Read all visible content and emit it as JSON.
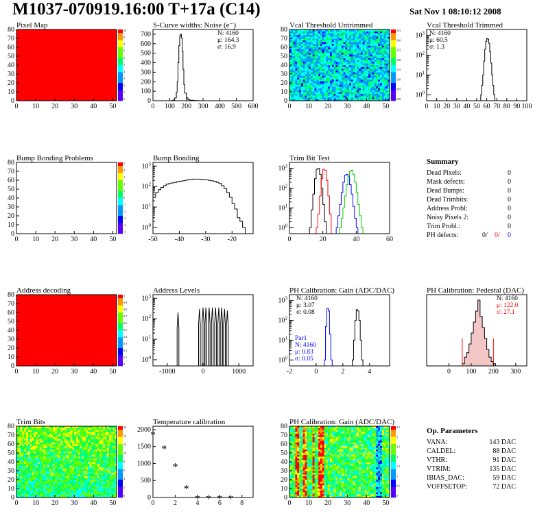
{
  "header": {
    "title": "M1037-070919.16:00 T+17a (C14)",
    "date": "Sat Nov  1 08:10:12 2008"
  },
  "chart_data": [
    {
      "id": "pixel-map",
      "type": "heatmap",
      "title": "Pixel Map",
      "xlim": [
        0,
        52
      ],
      "ylim": [
        0,
        80
      ],
      "xticks": [
        0,
        10,
        20,
        30,
        40,
        50
      ],
      "yticks": [
        0,
        10,
        20,
        30,
        40,
        50,
        60,
        70,
        80
      ],
      "fill": "uniform",
      "fill_color": "#ff0000",
      "colorbar_labels": [
        "10",
        "9",
        "8",
        "7",
        "6",
        "5",
        "4",
        "3",
        "2",
        "1",
        "0"
      ]
    },
    {
      "id": "noise",
      "type": "histogram",
      "title": "S-Curve widths: Noise (e⁻)",
      "xlim": [
        0,
        600
      ],
      "ylim": [
        0,
        750
      ],
      "xticks": [
        0,
        100,
        200,
        300,
        400,
        500,
        600
      ],
      "yticks": [
        0,
        100,
        200,
        300,
        400,
        500,
        600,
        700
      ],
      "logy": false,
      "series": [
        {
          "color": "#000000",
          "x": [
            100,
            110,
            120,
            130,
            140,
            145,
            150,
            155,
            160,
            165,
            170,
            175,
            180,
            185,
            190,
            200,
            210,
            220,
            240,
            260,
            280
          ],
          "y": [
            0,
            2,
            8,
            30,
            90,
            200,
            400,
            580,
            680,
            700,
            660,
            520,
            330,
            170,
            80,
            30,
            12,
            5,
            3,
            1,
            0
          ]
        }
      ],
      "stats": {
        "N": "4160",
        "mean": "164.3",
        "rms": "16.9"
      }
    },
    {
      "id": "vcal-untrimmed",
      "type": "heatmap",
      "title": "Vcal Threshold Untrimmed",
      "xlim": [
        0,
        52
      ],
      "ylim": [
        0,
        80
      ],
      "xticks": [
        0,
        10,
        20,
        30,
        40,
        50
      ],
      "yticks": [
        0,
        10,
        20,
        30,
        40,
        50,
        60,
        70,
        80
      ],
      "fill": "noise-cyan",
      "colorbar_labels": [
        "135",
        "130",
        "125",
        "120",
        "115",
        "110",
        "105",
        "100"
      ]
    },
    {
      "id": "vcal-trimmed",
      "type": "histogram",
      "title": "Vcal Threshold Trimmed",
      "xlim": [
        0,
        100
      ],
      "ylim": [
        0.5,
        2000
      ],
      "xticks": [
        0,
        10,
        20,
        30,
        40,
        50,
        60,
        70,
        80,
        90,
        100
      ],
      "logy": true,
      "series": [
        {
          "color": "#000000",
          "x": [
            54,
            55,
            56,
            57,
            58,
            59,
            60,
            61,
            62,
            63,
            64,
            65,
            66,
            67
          ],
          "y": [
            1,
            3,
            10,
            50,
            200,
            500,
            700,
            650,
            400,
            150,
            40,
            10,
            3,
            1
          ]
        }
      ],
      "stats": {
        "N": "4160",
        "mean": "60.5",
        "rms": "1.3"
      }
    },
    {
      "id": "bump-problems",
      "type": "heatmap",
      "title": "Bump Bonding Problems",
      "xlim": [
        0,
        52
      ],
      "ylim": [
        0,
        80
      ],
      "xticks": [
        0,
        10,
        20,
        30,
        40,
        50
      ],
      "yticks": [
        0,
        10,
        20,
        30,
        40,
        50,
        60,
        70,
        80
      ],
      "fill": "empty",
      "colorbar_labels": [
        "5",
        "4",
        "3",
        "2",
        "1",
        "0",
        "-1",
        "-2",
        "-3",
        "-4",
        "-5"
      ]
    },
    {
      "id": "bump-bonding",
      "type": "histogram",
      "title": "Bump Bonding",
      "xlim": [
        -50,
        -12
      ],
      "ylim": [
        0.5,
        1500
      ],
      "xticks": [
        -50,
        -40,
        -30,
        -20
      ],
      "logy": true,
      "series": [
        {
          "color": "#000000",
          "x": [
            -50,
            -49,
            -48,
            -47,
            -46,
            -45,
            -44,
            -43,
            -42,
            -41,
            -40,
            -39,
            -38,
            -37,
            -36,
            -35,
            -34,
            -33,
            -32,
            -31,
            -30,
            -29,
            -28,
            -27,
            -26,
            -25,
            -24,
            -23,
            -22,
            -21,
            -20,
            -19,
            -18,
            -17,
            -16,
            -15
          ],
          "y": [
            30,
            50,
            70,
            90,
            110,
            130,
            140,
            150,
            160,
            170,
            180,
            190,
            200,
            210,
            220,
            230,
            230,
            230,
            220,
            215,
            210,
            200,
            190,
            180,
            160,
            140,
            110,
            80,
            50,
            30,
            15,
            8,
            3,
            2,
            1,
            0
          ]
        }
      ]
    },
    {
      "id": "trim-bit-test",
      "type": "histogram",
      "title": "Trim Bit Test",
      "xlim": [
        0,
        60
      ],
      "ylim": [
        0.5,
        2000
      ],
      "xticks": [
        0,
        20,
        40,
        60
      ],
      "logy": true,
      "series": [
        {
          "color": "#000000",
          "x": [
            12,
            13,
            14,
            15,
            16,
            17,
            18,
            19,
            20,
            21,
            22
          ],
          "y": [
            1,
            8,
            50,
            300,
            900,
            1000,
            500,
            100,
            15,
            2,
            0
          ]
        },
        {
          "color": "#ff0000",
          "x": [
            16,
            17,
            18,
            19,
            20,
            21,
            22,
            23,
            24,
            25
          ],
          "y": [
            1,
            5,
            40,
            300,
            900,
            800,
            250,
            40,
            5,
            0
          ]
        },
        {
          "color": "#0000ff",
          "x": [
            28,
            29,
            30,
            31,
            32,
            33,
            34,
            35,
            36,
            37,
            38,
            39,
            40,
            41
          ],
          "y": [
            1,
            4,
            15,
            60,
            200,
            450,
            500,
            400,
            150,
            50,
            12,
            3,
            1,
            0
          ]
        },
        {
          "color": "#00cc00",
          "x": [
            30,
            31,
            32,
            33,
            34,
            35,
            36,
            37,
            38,
            39,
            40,
            41,
            42,
            43,
            44
          ],
          "y": [
            1,
            3,
            10,
            40,
            150,
            400,
            700,
            800,
            500,
            200,
            60,
            15,
            4,
            1,
            0
          ]
        }
      ]
    },
    {
      "id": "address-decoding",
      "type": "heatmap",
      "title": "Address decoding",
      "xlim": [
        0,
        52
      ],
      "ylim": [
        0,
        80
      ],
      "xticks": [
        0,
        10,
        20,
        30,
        40,
        50
      ],
      "yticks": [
        0,
        10,
        20,
        30,
        40,
        50,
        60,
        70,
        80
      ],
      "fill": "uniform",
      "fill_color": "#ff0000",
      "colorbar_labels": [
        "1",
        "0.9",
        "0.8",
        "0.7",
        "0.6",
        "0.5",
        "0.4",
        "0.3",
        "0.2",
        "0.1",
        "0"
      ]
    },
    {
      "id": "address-levels",
      "type": "histogram",
      "title": "Address Levels",
      "xlim": [
        -1400,
        1400
      ],
      "ylim": [
        0.5,
        1500
      ],
      "xticks": [
        -1000,
        0,
        1000
      ],
      "logy": true,
      "peaks": [
        {
          "x": -700,
          "h": 200
        },
        {
          "x": -100,
          "h": 300
        },
        {
          "x": 0,
          "h": 350
        },
        {
          "x": 80,
          "h": 350
        },
        {
          "x": 170,
          "h": 350
        },
        {
          "x": 260,
          "h": 350
        },
        {
          "x": 350,
          "h": 350
        },
        {
          "x": 440,
          "h": 350
        },
        {
          "x": 520,
          "h": 350
        },
        {
          "x": 600,
          "h": 300
        },
        {
          "x": 680,
          "h": 250
        }
      ],
      "peak_width": 25
    },
    {
      "id": "gain",
      "type": "histogram",
      "title": "PH Calibration: Gain (ADC/DAC)",
      "xlim": [
        -2,
        5.5
      ],
      "ylim": [
        0.5,
        2000
      ],
      "xticks": [
        -2,
        0,
        2,
        4
      ],
      "logy": true,
      "series": [
        {
          "color": "#000000",
          "x": [
            2.7,
            2.8,
            2.9,
            3.0,
            3.1,
            3.2,
            3.3,
            3.4
          ],
          "y": [
            1,
            10,
            100,
            350,
            300,
            100,
            10,
            1
          ]
        },
        {
          "color": "#0000ff",
          "x": [
            0.6,
            0.7,
            0.8,
            0.9,
            1.0,
            1.1
          ],
          "y": [
            1,
            50,
            400,
            300,
            20,
            1
          ]
        }
      ],
      "stats": {
        "N": "4160",
        "mean": "3.07",
        "rms": "0.08"
      },
      "stats2": {
        "label": "Par1",
        "N": "4160",
        "mean": "0.83",
        "rms": "0.05"
      }
    },
    {
      "id": "pedestal",
      "type": "histogram",
      "title": "PH Calibration: Pedestal (DAC)",
      "xlim": [
        -100,
        350
      ],
      "ylim": [
        0,
        65
      ],
      "xticks": [
        0,
        100,
        200,
        300
      ],
      "logy": false,
      "series": [
        {
          "color": "#000000",
          "x": [
            60,
            70,
            80,
            90,
            100,
            110,
            120,
            130,
            140,
            150,
            160,
            170,
            180,
            190,
            200,
            210
          ],
          "y": [
            2,
            8,
            12,
            20,
            30,
            40,
            50,
            60,
            45,
            35,
            25,
            15,
            8,
            4,
            2,
            0
          ]
        }
      ],
      "stats": {
        "N": "4160",
        "mean": "122.0",
        "rms": "27.1"
      },
      "markers": [
        60,
        200
      ]
    },
    {
      "id": "trim-bits",
      "type": "heatmap",
      "title": "Trim Bits",
      "xlim": [
        0,
        52
      ],
      "ylim": [
        0,
        80
      ],
      "xticks": [
        0,
        10,
        20,
        30,
        40,
        50
      ],
      "yticks": [
        0,
        10,
        20,
        30,
        40,
        50,
        60,
        70,
        80
      ],
      "fill": "noise-green",
      "colorbar_labels": [
        "16",
        "14",
        "12",
        "10",
        "8",
        "6",
        "4",
        "2",
        "0"
      ]
    },
    {
      "id": "temperature",
      "type": "scatter",
      "title": "Temperature calibration",
      "xlim": [
        0,
        9
      ],
      "ylim": [
        0,
        2100
      ],
      "xticks": [
        0,
        2,
        4,
        6,
        8
      ],
      "yticks": [
        0,
        500,
        1000,
        1500,
        2000
      ],
      "x": [
        0,
        1,
        2,
        3,
        4,
        5,
        6,
        7
      ],
      "y": [
        1880,
        1460,
        940,
        290,
        0,
        0,
        0,
        0
      ]
    },
    {
      "id": "gain-map",
      "type": "heatmap",
      "title": "PH Calibration: Gain (ADC/DAC)",
      "xlim": [
        0,
        52
      ],
      "ylim": [
        0,
        80
      ],
      "xticks": [
        0,
        10,
        20,
        30,
        40,
        50
      ],
      "yticks": [
        0,
        10,
        20,
        30,
        40,
        50,
        60,
        70,
        80
      ],
      "fill": "noise-columns",
      "colorbar_labels": [
        "3.5",
        "3",
        "2.5",
        "2",
        "1.5",
        "1",
        "0.5",
        "0"
      ]
    }
  ],
  "summary": {
    "title": "Summary",
    "rows": [
      {
        "label": "Dead Pixels:",
        "value": "0"
      },
      {
        "label": "Mask defects:",
        "value": "0"
      },
      {
        "label": "Dead Bumps:",
        "value": "0"
      },
      {
        "label": "Dead Trimbits:",
        "value": "0"
      },
      {
        "label": "Address Probl:",
        "value": "0"
      },
      {
        "label": "Noisy Pixels 2:",
        "value": "0"
      },
      {
        "label": "Trim Probl.:",
        "value": "0"
      }
    ],
    "ph_label": "PH defects:",
    "ph_values": [
      {
        "text": "0/",
        "color": "#000000"
      },
      {
        "text": "0/",
        "color": "#ff0000"
      },
      {
        "text": "0",
        "color": "#0000ff"
      }
    ]
  },
  "op_params": {
    "title": "Op. Parameters",
    "rows": [
      {
        "label": "VANA:",
        "value": "143 DAC"
      },
      {
        "label": "CALDEL:",
        "value": "88 DAC"
      },
      {
        "label": "VTHR:",
        "value": "91 DAC"
      },
      {
        "label": "VTRIM:",
        "value": "135 DAC"
      },
      {
        "label": "IBIAS_DAC:",
        "value": "59 DAC"
      },
      {
        "label": "VOFFSETOP:",
        "value": "72 DAC"
      }
    ]
  },
  "stat_labels": {
    "n": "N:",
    "mean": "μ:",
    "rms": "σ:"
  }
}
